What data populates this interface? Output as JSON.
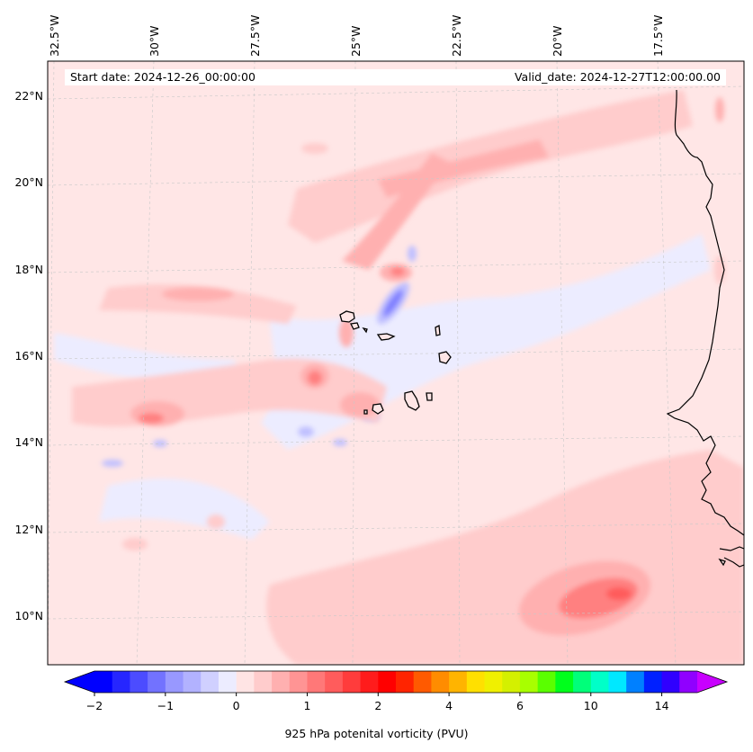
{
  "header": {
    "start_date": "Start date: 2024-12-26_00:00:00",
    "valid_date": "Valid_date: 2024-12-27T12:00:00.00"
  },
  "longitude_labels": [
    "32.5°W",
    "30°W",
    "27.5°W",
    "25°W",
    "22.5°W",
    "20°W",
    "17.5°W"
  ],
  "latitude_labels": [
    "22°N",
    "20°N",
    "18°N",
    "16°N",
    "14°N",
    "12°N",
    "10°N"
  ],
  "colorbar": {
    "label": "925 hPa potenital vorticity (PVU)",
    "ticks": [
      {
        "text": "−2",
        "value": -2
      },
      {
        "text": "−1",
        "value": -1
      },
      {
        "text": "0",
        "value": 0
      },
      {
        "text": "1",
        "value": 1
      },
      {
        "text": "2",
        "value": 2
      },
      {
        "text": "4",
        "value": 4
      },
      {
        "text": "6",
        "value": 6
      },
      {
        "text": "10",
        "value": 10
      },
      {
        "text": "14",
        "value": 14
      }
    ],
    "colors": [
      "#0000ff",
      "#2626ff",
      "#4c4cff",
      "#7272ff",
      "#9898ff",
      "#b2b2ff",
      "#d0d0ff",
      "#ececff",
      "#ffe4e4",
      "#ffcccc",
      "#ffb0b0",
      "#ff9494",
      "#ff7878",
      "#ff5c5c",
      "#ff3c3c",
      "#ff1c1c",
      "#ff0000",
      "#ff2400",
      "#ff5a00",
      "#ff8c00",
      "#ffb400",
      "#ffe000",
      "#f0f000",
      "#d4f000",
      "#a8ff00",
      "#5aff00",
      "#00ff1c",
      "#00ff7a",
      "#00ffc8",
      "#00e8ff",
      "#0080ff",
      "#0020ff",
      "#3000ff",
      "#9000ff"
    ],
    "under_color": "#0000ff",
    "over_color": "#c800ff"
  },
  "colors": {
    "background_field": "#ffe6e6",
    "light_pink": "#ffcccc",
    "mid_pink": "#ffb0b0",
    "dark_pink": "#ff8080",
    "red": "#ff5c5c",
    "light_blue": "#ececff",
    "mid_blue": "#c0c0ff",
    "dark_blue": "#8080ff",
    "coast": "#000000",
    "grid": "#c8c8c8"
  }
}
